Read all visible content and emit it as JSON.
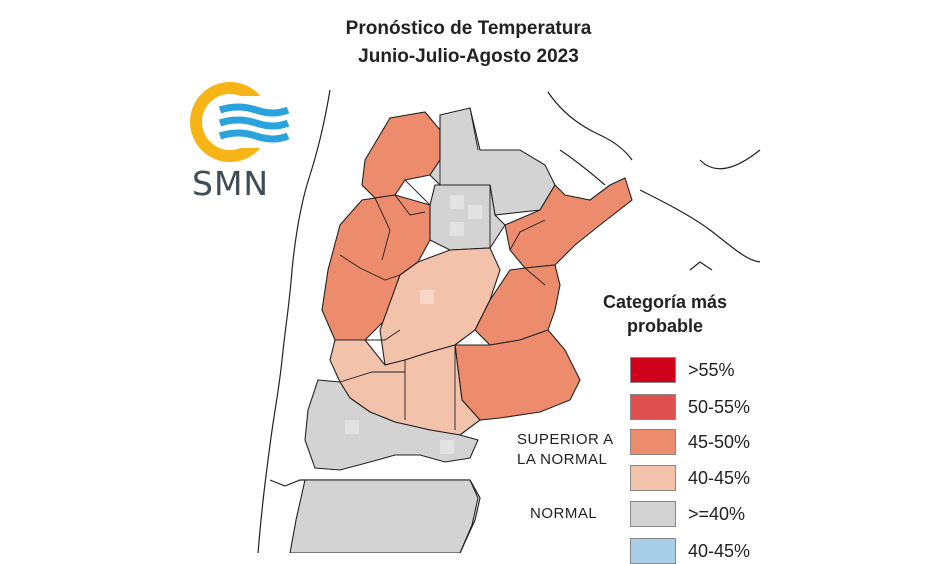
{
  "title": {
    "line1": "Pronóstico de Temperatura",
    "line2": "Junio-Julio-Agosto 2023"
  },
  "logo": {
    "text": "SMN",
    "icon": "smn-logo-icon"
  },
  "legend": {
    "title_line1": "Categoría más",
    "title_line2": "probable",
    "superior_label_line1": "SUPERIOR A",
    "superior_label_line2": "LA NORMAL",
    "normal_label": "NORMAL",
    "items": [
      {
        "label": ">55%",
        "color": "#d0021b"
      },
      {
        "label": "50-55%",
        "color": "#e05050"
      },
      {
        "label": "45-50%",
        "color": "#ec8c6c"
      },
      {
        "label": "40-45%",
        "color": "#f3c2aa"
      },
      {
        "label": ">=40%",
        "color": "#d3d3d3"
      },
      {
        "label": "40-45%",
        "color": "#a9cfe8"
      }
    ]
  },
  "map": {
    "category_colors": {
      "superior_45_50": "#ec8c6c",
      "superior_40_45": "#f3c2aa",
      "normal": "#d3d3d3",
      "land": "#ffffff",
      "borders": "#222222"
    }
  }
}
